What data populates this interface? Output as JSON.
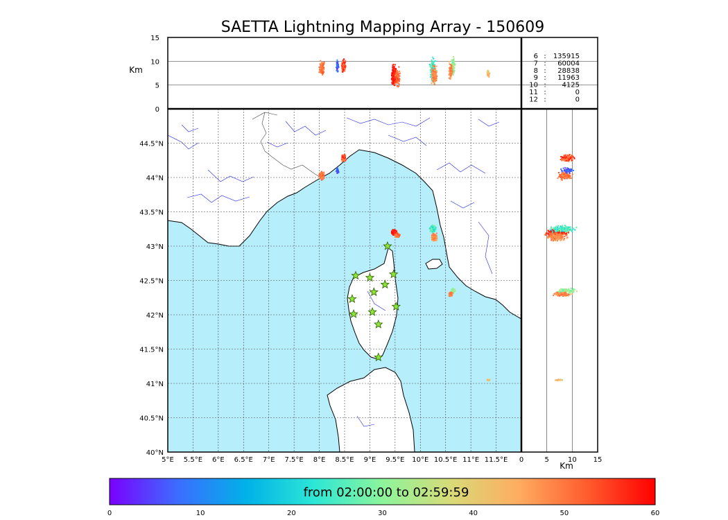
{
  "title": "SAETTA Lightning Mapping Array - 150609",
  "colors": {
    "sea": "#b7eefb",
    "land": "#ffffff",
    "coast": "#000000",
    "rivers": "#2222ee",
    "borders": "#444444",
    "grid": "#444444",
    "station_fill": "#8fe33a",
    "station_stroke": "#2a5f00",
    "highlight": "#ff0000"
  },
  "colorbar": {
    "text": "from 02:00:00 to 02:59:59",
    "ticks": [
      "0",
      "10",
      "20",
      "30",
      "40",
      "50",
      "60"
    ],
    "min": 0,
    "max": 60,
    "stops": [
      "#7a00ff",
      "#3c6dff",
      "#00b1e8",
      "#2ce7d6",
      "#8cf59b",
      "#d8da78",
      "#ffac60",
      "#ff5c2e",
      "#ff0000"
    ]
  },
  "stats": [
    {
      "n": "6",
      "count": "135915",
      "highlight": false
    },
    {
      "n": "7",
      "count": "60004",
      "highlight": true
    },
    {
      "n": "8",
      "count": "28838",
      "highlight": false
    },
    {
      "n": "9",
      "count": "11963",
      "highlight": false
    },
    {
      "n": "10",
      "count": "4125",
      "highlight": false
    },
    {
      "n": "11",
      "count": "0",
      "highlight": false
    },
    {
      "n": "12",
      "count": "0",
      "highlight": false
    }
  ],
  "chart_data": {
    "type": "scatter",
    "title": "SAETTA Lightning Mapping Array - 150609",
    "map": {
      "lon_range": [
        5,
        12
      ],
      "lat_range": [
        40,
        45
      ],
      "lon_ticks": [
        "5°E",
        "5.5°E",
        "6°E",
        "6.5°E",
        "7°E",
        "7.5°E",
        "8°E",
        "8.5°E",
        "9°E",
        "9.5°E",
        "10°E",
        "10.5°E",
        "11°E",
        "11.5°E"
      ],
      "lat_ticks": [
        "40°N",
        "40.5°N",
        "41°N",
        "41.5°N",
        "42°N",
        "42.5°N",
        "43°N",
        "43.5°N",
        "44°N",
        "44.5°N"
      ],
      "grid": true
    },
    "alt_lon_panel": {
      "ylabel": "Km",
      "ylim": [
        0,
        15
      ],
      "yticks": [
        "0",
        "5",
        "10",
        "15"
      ]
    },
    "alt_lat_panel": {
      "xlabel": "Km",
      "xlim": [
        0,
        15
      ],
      "xticks": [
        "0",
        "5",
        "10",
        "15"
      ]
    },
    "stations": [
      {
        "lon": 9.35,
        "lat": 43.0
      },
      {
        "lon": 8.72,
        "lat": 42.57
      },
      {
        "lon": 9.0,
        "lat": 42.54
      },
      {
        "lon": 9.47,
        "lat": 42.59
      },
      {
        "lon": 9.3,
        "lat": 42.44
      },
      {
        "lon": 9.08,
        "lat": 42.33
      },
      {
        "lon": 8.65,
        "lat": 42.23
      },
      {
        "lon": 9.52,
        "lat": 42.12
      },
      {
        "lon": 8.68,
        "lat": 42.01
      },
      {
        "lon": 9.05,
        "lat": 42.04
      },
      {
        "lon": 9.17,
        "lat": 41.86
      },
      {
        "lon": 9.17,
        "lat": 41.38
      }
    ],
    "clusters": [
      {
        "lon": 8.05,
        "lat": 44.03,
        "dlon": 0.06,
        "dlat": 0.07,
        "alt": 8.5,
        "dalt": 1.8,
        "t": [
          46,
          55
        ],
        "n": 140
      },
      {
        "lon": 8.36,
        "lat": 44.1,
        "dlon": 0.03,
        "dlat": 0.05,
        "alt": 9.0,
        "dalt": 1.5,
        "t": [
          2,
          12
        ],
        "n": 60
      },
      {
        "lon": 8.48,
        "lat": 44.28,
        "dlon": 0.05,
        "dlat": 0.07,
        "alt": 9.0,
        "dalt": 2.0,
        "t": [
          48,
          60
        ],
        "n": 120
      },
      {
        "lon": 9.48,
        "lat": 43.2,
        "dlon": 0.06,
        "dlat": 0.05,
        "alt": 7.0,
        "dalt": 2.8,
        "t": [
          55,
          60
        ],
        "n": 220
      },
      {
        "lon": 9.55,
        "lat": 43.16,
        "dlon": 0.06,
        "dlat": 0.04,
        "alt": 6.5,
        "dalt": 2.5,
        "t": [
          47,
          55
        ],
        "n": 80
      },
      {
        "lon": 10.25,
        "lat": 43.25,
        "dlon": 0.07,
        "dlat": 0.06,
        "alt": 8.0,
        "dalt": 3.0,
        "t": [
          18,
          32
        ],
        "n": 160
      },
      {
        "lon": 10.28,
        "lat": 43.13,
        "dlon": 0.07,
        "dlat": 0.07,
        "alt": 7.0,
        "dalt": 2.5,
        "t": [
          45,
          52
        ],
        "n": 180
      },
      {
        "lon": 10.65,
        "lat": 42.35,
        "dlon": 0.05,
        "dlat": 0.05,
        "alt": 9.0,
        "dalt": 2.5,
        "t": [
          25,
          35
        ],
        "n": 90
      },
      {
        "lon": 10.6,
        "lat": 42.3,
        "dlon": 0.05,
        "dlat": 0.04,
        "alt": 8.0,
        "dalt": 2.2,
        "t": [
          45,
          52
        ],
        "n": 80
      },
      {
        "lon": 11.35,
        "lat": 41.05,
        "dlon": 0.05,
        "dlat": 0.015,
        "alt": 7.5,
        "dalt": 1.2,
        "t": [
          38,
          46
        ],
        "n": 25
      }
    ]
  }
}
